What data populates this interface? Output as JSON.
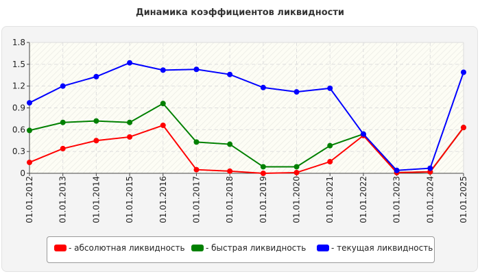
{
  "chart_data": {
    "type": "line",
    "title": "Динамика коэффициентов ликвидности",
    "categories": [
      "01.01.2012",
      "01.01.2013",
      "01.01.2014",
      "01.01.2015",
      "01.01.2016",
      "01.01.2017",
      "01.01.2018",
      "01.01.2019",
      "01.01.2020",
      "01.01.2021",
      "01.01.2022",
      "01.01.2023",
      "01.01.2024",
      "01.01.2025"
    ],
    "ylim": [
      0,
      1.8
    ],
    "yticks": [
      "0",
      "0.3",
      "0.6",
      "0.9",
      "1.2",
      "1.5",
      "1.8"
    ],
    "grid": true,
    "legend_placement": "bottom",
    "series": [
      {
        "name": "- абсолютная ликвидность",
        "color": "#ff0000",
        "values": [
          0.15,
          0.34,
          0.45,
          0.5,
          0.66,
          0.05,
          0.03,
          0.0,
          0.01,
          0.16,
          0.52,
          0.01,
          0.02,
          0.63
        ]
      },
      {
        "name": "- быстрая ликвидность",
        "color": "#008000",
        "values": [
          0.59,
          0.7,
          0.72,
          0.7,
          0.96,
          0.43,
          0.4,
          0.09,
          0.09,
          0.38,
          0.54,
          0.01,
          0.02,
          0.63
        ]
      },
      {
        "name": "- текущая ликвидность",
        "color": "#0000ff",
        "values": [
          0.97,
          1.2,
          1.33,
          1.52,
          1.42,
          1.43,
          1.36,
          1.18,
          1.12,
          1.17,
          0.54,
          0.04,
          0.07,
          1.39
        ]
      }
    ]
  }
}
